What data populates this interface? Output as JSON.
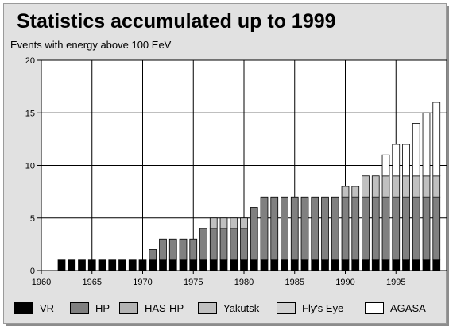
{
  "title": "Statistics accumulated up to 1999",
  "subtitle": "Events with energy above 100 EeV",
  "chart_data": {
    "type": "bar",
    "stacked": true,
    "title": "Statistics accumulated up to 1999",
    "subtitle": "Events with energy above 100 EeV",
    "xlabel": "",
    "ylabel": "",
    "xlim": [
      1960,
      2000
    ],
    "ylim": [
      0,
      20
    ],
    "x_ticks": [
      1960,
      1965,
      1970,
      1975,
      1980,
      1985,
      1990,
      1995
    ],
    "y_ticks": [
      0,
      5,
      10,
      15,
      20
    ],
    "grid": true,
    "legend_position": "bottom",
    "x": [
      1962,
      1963,
      1964,
      1965,
      1966,
      1967,
      1968,
      1969,
      1970,
      1971,
      1972,
      1973,
      1974,
      1975,
      1976,
      1977,
      1978,
      1979,
      1980,
      1981,
      1982,
      1983,
      1984,
      1985,
      1986,
      1987,
      1988,
      1989,
      1990,
      1991,
      1992,
      1993,
      1994,
      1995,
      1996,
      1997,
      1998,
      1999
    ],
    "series": [
      {
        "name": "VR",
        "color": "#000000",
        "values": [
          1,
          1,
          1,
          1,
          1,
          1,
          1,
          1,
          1,
          1,
          1,
          1,
          1,
          1,
          1,
          1,
          1,
          1,
          1,
          1,
          1,
          1,
          1,
          1,
          1,
          1,
          1,
          1,
          1,
          1,
          1,
          1,
          1,
          1,
          1,
          1,
          1,
          1
        ]
      },
      {
        "name": "HP",
        "color": "#808080",
        "values": [
          0,
          0,
          0,
          0,
          0,
          0,
          0,
          0,
          0,
          1,
          2,
          2,
          2,
          2,
          3,
          3,
          3,
          3,
          3,
          5,
          6,
          6,
          6,
          6,
          6,
          6,
          6,
          6,
          6,
          6,
          6,
          6,
          6,
          6,
          6,
          6,
          6,
          6
        ]
      },
      {
        "name": "HAS-HP",
        "color": "#b4b4b4",
        "values": [
          0,
          0,
          0,
          0,
          0,
          0,
          0,
          0,
          0,
          0,
          0,
          0,
          0,
          0,
          0,
          0,
          0,
          0,
          0,
          0,
          0,
          0,
          0,
          0,
          0,
          0,
          0,
          0,
          0,
          0,
          0,
          0,
          0,
          0,
          0,
          0,
          0,
          0
        ]
      },
      {
        "name": "Yakutsk",
        "color": "#c0c0c0",
        "values": [
          0,
          0,
          0,
          0,
          0,
          0,
          0,
          0,
          0,
          0,
          0,
          0,
          0,
          0,
          0,
          1,
          1,
          1,
          1,
          0,
          0,
          0,
          0,
          0,
          0,
          0,
          0,
          0,
          1,
          1,
          2,
          2,
          2,
          2,
          2,
          2,
          2,
          2
        ]
      },
      {
        "name": "Fly's Eye",
        "color": "#d2d2d2",
        "values": [
          0,
          0,
          0,
          0,
          0,
          0,
          0,
          0,
          0,
          0,
          0,
          0,
          0,
          0,
          0,
          0,
          0,
          0,
          0,
          0,
          0,
          0,
          0,
          0,
          0,
          0,
          0,
          0,
          0,
          0,
          0,
          0,
          0,
          0,
          0,
          0,
          0,
          0
        ]
      },
      {
        "name": "AGASA",
        "color": "#ffffff",
        "values": [
          0,
          0,
          0,
          0,
          0,
          0,
          0,
          0,
          0,
          0,
          0,
          0,
          0,
          0,
          0,
          0,
          0,
          0,
          0,
          0,
          0,
          0,
          0,
          0,
          0,
          0,
          0,
          0,
          0,
          0,
          0,
          0,
          2,
          3,
          3,
          5,
          6,
          7
        ]
      }
    ],
    "legend": [
      "VR",
      "HP",
      "HAS-HP",
      "Yakutsk",
      "Fly's Eye",
      "AGASA"
    ]
  },
  "colors": {
    "panel_background": "#e1e1e1",
    "plot_background": "#ffffff",
    "grid": "#000000",
    "guide_lines": "#444444"
  }
}
